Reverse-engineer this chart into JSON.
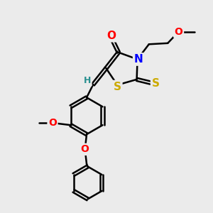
{
  "bg_color": "#ebebeb",
  "bond_color": "#000000",
  "bond_width": 1.8,
  "dbo": 0.055,
  "atom_colors": {
    "O": "#ff0000",
    "N": "#0000ff",
    "S": "#ccaa00",
    "C": "#000000",
    "H": "#2a9090"
  },
  "font_size": 10,
  "fig_width": 3.0,
  "fig_height": 3.0,
  "dpi": 100,
  "xlim": [
    0,
    10
  ],
  "ylim": [
    0,
    10
  ]
}
